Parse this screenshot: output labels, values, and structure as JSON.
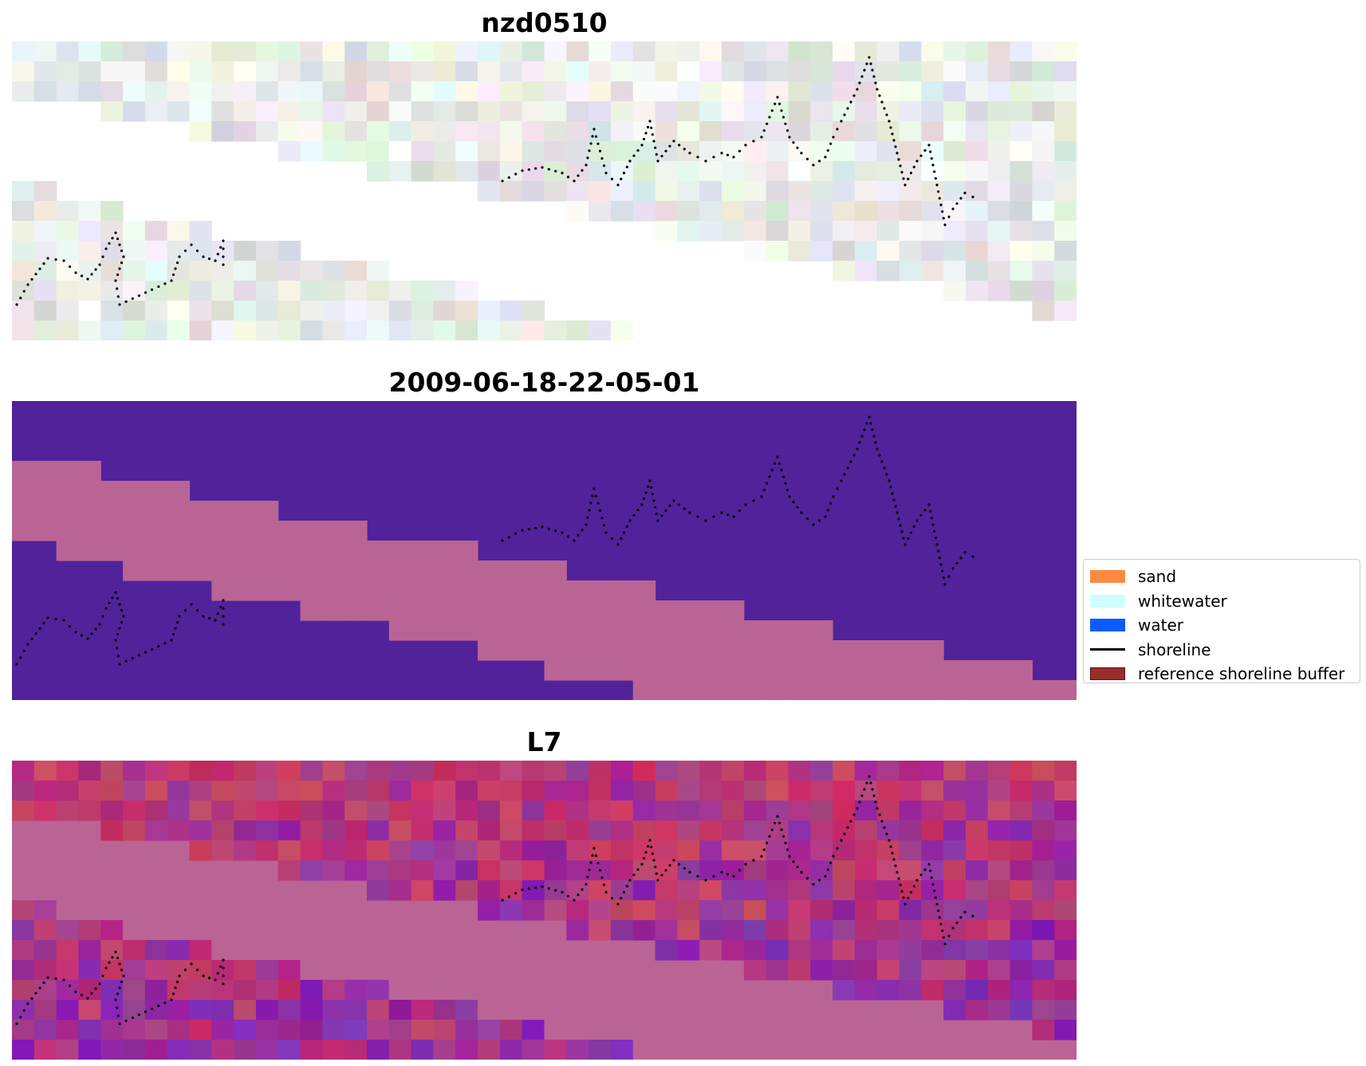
{
  "panels": [
    {
      "title": "nzd0510",
      "kind": "rgb-imagery"
    },
    {
      "title": "2009-06-18-22-05-01",
      "kind": "classification"
    },
    {
      "title": "L7",
      "kind": "index-overlay"
    }
  ],
  "legend": {
    "items": [
      {
        "label": "sand",
        "color": "#fd8a3f",
        "symbol": "patch"
      },
      {
        "label": "whitewater",
        "color": "#cdfffe",
        "symbol": "patch"
      },
      {
        "label": "water",
        "color": "#0a5cff",
        "symbol": "patch"
      },
      {
        "label": "shoreline",
        "color": "#000000",
        "symbol": "line"
      },
      {
        "label": "reference shoreline buffer",
        "color": "#9a2e2e",
        "symbol": "patch"
      }
    ]
  },
  "colors": {
    "class_dark": "#51229a",
    "class_pink": "#ba6495",
    "l7_red": "#c8245a",
    "l7_purple": "#7d28b4",
    "shoreline_points": "#000000"
  }
}
